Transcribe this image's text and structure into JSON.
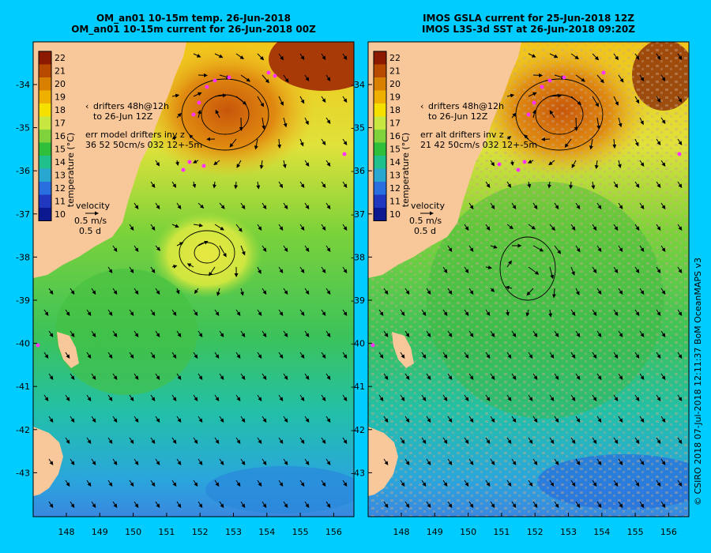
{
  "left_panel": {
    "title_line1": "OM_an01 10-15m temp. 26-Jun-2018",
    "title_line2": "OM_an01 10-15m current for 26-Jun-2018 00Z",
    "drifters_line1": "drifters 48h@12h",
    "drifters_line2": "to 26-Jun 12Z",
    "err_line1": "err model drifters inv z",
    "err_line2": "36 52 50cm/s 032 12+-5m"
  },
  "right_panel": {
    "title_line1": "IMOS GSLA current for 25-Jun-2018 12Z",
    "title_line2": "IMOS L3S-3d SST at 26-Jun-2018 09:20Z",
    "drifters_line1": "drifters 48h@12h",
    "drifters_line2": "to 26-Jun 12Z",
    "err_line1": "err alt drifters inv z",
    "err_line2": "21 42 50cm/s 032 12+-5m"
  },
  "colorbar": {
    "label": "temperature (°C)",
    "ticks": [
      "22",
      "21",
      "20",
      "19",
      "18",
      "17",
      "16",
      "15",
      "14",
      "13",
      "12",
      "11",
      "10"
    ],
    "colors": [
      "#8b1a00",
      "#b84a00",
      "#d98000",
      "#f0b000",
      "#f5e000",
      "#c8e640",
      "#7fd23c",
      "#2fbf3a",
      "#20c08c",
      "#28a8d0",
      "#2a6fe0",
      "#2038c0",
      "#0c1890"
    ]
  },
  "velocity_key": {
    "label": "velocity",
    "speed": "0.5 m/s",
    "time": "0.5 d"
  },
  "lat_ticks": [
    "-34",
    "-35",
    "-36",
    "-37",
    "-38",
    "-39",
    "-40",
    "-41",
    "-42",
    "-43"
  ],
  "lon_ticks": [
    "148",
    "149",
    "150",
    "151",
    "152",
    "153",
    "154",
    "155",
    "156"
  ],
  "credit": "© CSIRO 2018   07-Jul-2018 12:11:37 BoM OceanMAPS v3",
  "colors": {
    "background": "#00ccff",
    "land": "#f9c89a",
    "drifter": "#ff33ff",
    "missing": "#c8a888"
  }
}
